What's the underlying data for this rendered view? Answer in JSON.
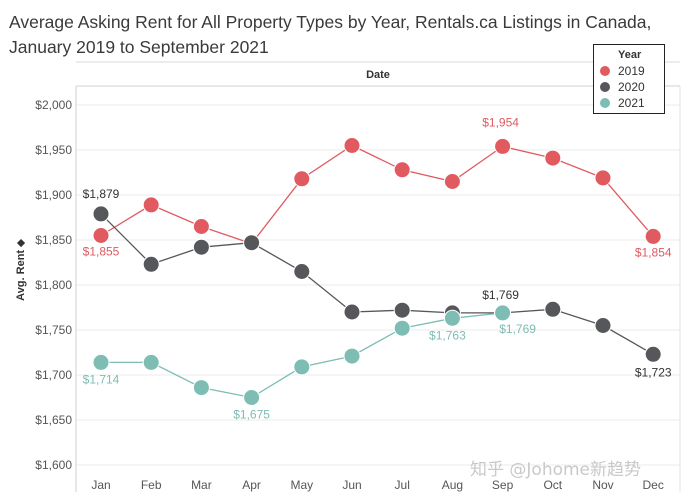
{
  "title_line1": "Average Asking Rent for All Property Types by Year, Rentals.ca Listings in Canada,",
  "title_line2": "January 2019 to September 2021",
  "watermark": "知乎 @Johome新趋势",
  "chart_data": {
    "type": "line",
    "x_header": "Date",
    "ylabel": "Avg. Rent ⬥",
    "ylim": [
      1600,
      2000
    ],
    "yticks": [
      1600,
      1650,
      1700,
      1750,
      1800,
      1850,
      1900,
      1950,
      2000
    ],
    "ytick_labels": [
      "$1,600",
      "$1,650",
      "$1,700",
      "$1,750",
      "$1,800",
      "$1,850",
      "$1,900",
      "$1,950",
      "$2,000"
    ],
    "categories": [
      "Jan",
      "Feb",
      "Mar",
      "Apr",
      "May",
      "Jun",
      "Jul",
      "Aug",
      "Sep",
      "Oct",
      "Nov",
      "Dec"
    ],
    "grid": "horizontal",
    "legend_title": "Year",
    "legend_position": "top-right",
    "series": [
      {
        "name": "2019",
        "color": "#e05a60",
        "values": [
          1855,
          1889,
          1865,
          1846,
          1918,
          1955,
          1928,
          1915,
          1954,
          1941,
          1919,
          1854
        ]
      },
      {
        "name": "2020",
        "color": "#56575b",
        "values": [
          1879,
          1823,
          1842,
          1847,
          1815,
          1770,
          1772,
          1769,
          1769,
          1773,
          1755,
          1723
        ]
      },
      {
        "name": "2021",
        "color": "#7dbdb3",
        "values": [
          1714,
          1714,
          1686,
          1675,
          1709,
          1721,
          1752,
          1763,
          1769,
          null,
          null,
          null
        ]
      }
    ],
    "data_labels": [
      {
        "series": 0,
        "index": 0,
        "text": "$1,855"
      },
      {
        "series": 0,
        "index": 8,
        "text": "$1,954"
      },
      {
        "series": 0,
        "index": 11,
        "text": "$1,854"
      },
      {
        "series": 1,
        "index": 0,
        "text": "$1,879"
      },
      {
        "series": 1,
        "index": 8,
        "text": "$1,769"
      },
      {
        "series": 1,
        "index": 11,
        "text": "$1,723"
      },
      {
        "series": 2,
        "index": 0,
        "text": "$1,714"
      },
      {
        "series": 2,
        "index": 3,
        "text": "$1,675"
      },
      {
        "series": 2,
        "index": 7,
        "text": "$1,763"
      },
      {
        "series": 2,
        "index": 8,
        "text": "$1,769"
      }
    ]
  }
}
